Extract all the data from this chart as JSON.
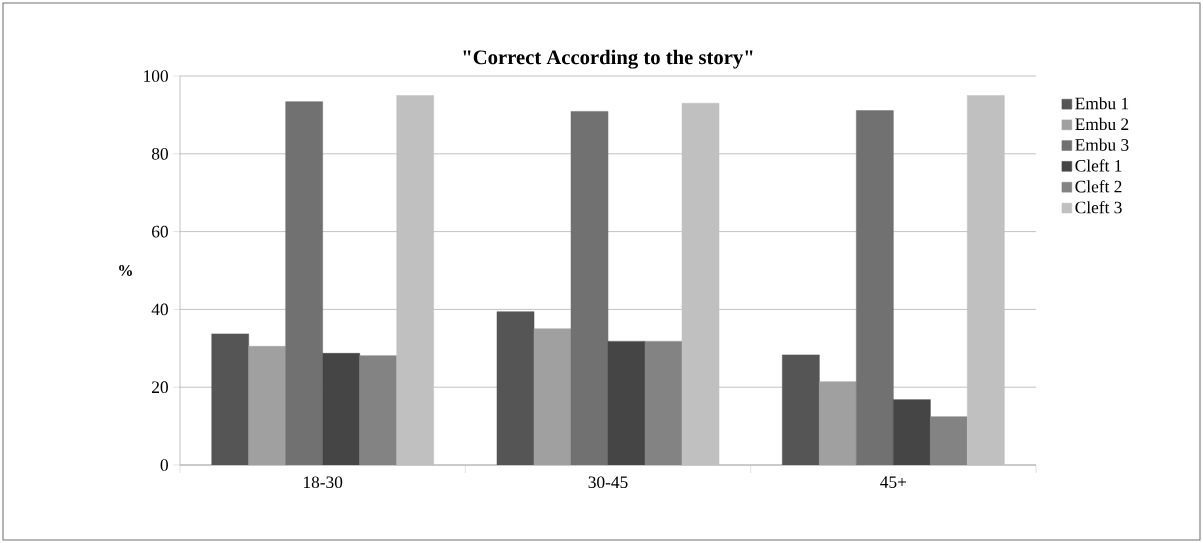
{
  "chart_data": {
    "type": "bar",
    "title": "\"Correct According to the story\"",
    "ylabel": "%",
    "categories": [
      "18-30",
      "30-45",
      "45+"
    ],
    "series": [
      {
        "name": "Embu 1",
        "color": "#555555",
        "values": [
          33.7,
          39.4,
          28.3
        ]
      },
      {
        "name": "Embu 2",
        "color": "#a0a0a0",
        "values": [
          30.5,
          35.0,
          21.4
        ]
      },
      {
        "name": "Embu 3",
        "color": "#717171",
        "values": [
          93.4,
          90.9,
          91.1
        ]
      },
      {
        "name": "Cleft 1",
        "color": "#454545",
        "values": [
          28.7,
          31.8,
          16.8
        ]
      },
      {
        "name": "Cleft 2",
        "color": "#838383",
        "values": [
          28.1,
          31.8,
          12.4
        ]
      },
      {
        "name": "Cleft 3",
        "color": "#c0c0c0",
        "values": [
          95.0,
          93.0,
          95.0
        ]
      }
    ],
    "ylim": [
      0,
      100
    ],
    "yticks": [
      0,
      20,
      40,
      60,
      80,
      100
    ],
    "grid": "y",
    "legend": "right"
  }
}
